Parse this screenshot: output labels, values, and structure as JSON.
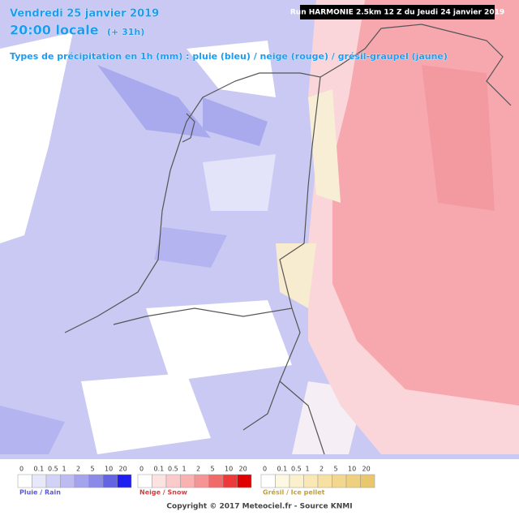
{
  "header": {
    "date": "Vendredi 25 janvier 2019",
    "time": "20:00 locale",
    "offset": "(+ 31h)",
    "subtitle": "Types de précipitation en 1h (mm) : pluie (bleu) / neige (rouge) / grésil-graupel (jaune)",
    "run": "Run HARMONIE 2.5km 12 Z du Jeudi 24 janvier 2019"
  },
  "legends": [
    {
      "name": "Pluie / Rain",
      "labels": [
        0,
        0.1,
        0.5,
        1,
        2,
        5,
        10,
        20
      ],
      "colors": [
        "#ffffff",
        "#e8e8fb",
        "#d2d2f6",
        "#bcbcf2",
        "#a4a4ee",
        "#8a8ae9",
        "#6464e2",
        "#1e1ef0"
      ]
    },
    {
      "name": "Neige / Snow",
      "labels": [
        0,
        0.1,
        0.5,
        1,
        2,
        5,
        10,
        20
      ],
      "colors": [
        "#ffffff",
        "#fde2e2",
        "#fbcaca",
        "#f8b2b2",
        "#f59494",
        "#f06a6a",
        "#ec3a3a",
        "#e00000"
      ]
    },
    {
      "name": "Grésil / Ice pellet",
      "labels": [
        0,
        0.1,
        0.5,
        1,
        2,
        5,
        10,
        20
      ],
      "colors": [
        "#ffffff",
        "#fdf8e2",
        "#fbf0cc",
        "#f9e8b6",
        "#f6e0a2",
        "#f2d88e",
        "#eed07e",
        "#eac66c"
      ]
    }
  ],
  "footer": "Copyright © 2017 Meteociel.fr - Source KNMI"
}
